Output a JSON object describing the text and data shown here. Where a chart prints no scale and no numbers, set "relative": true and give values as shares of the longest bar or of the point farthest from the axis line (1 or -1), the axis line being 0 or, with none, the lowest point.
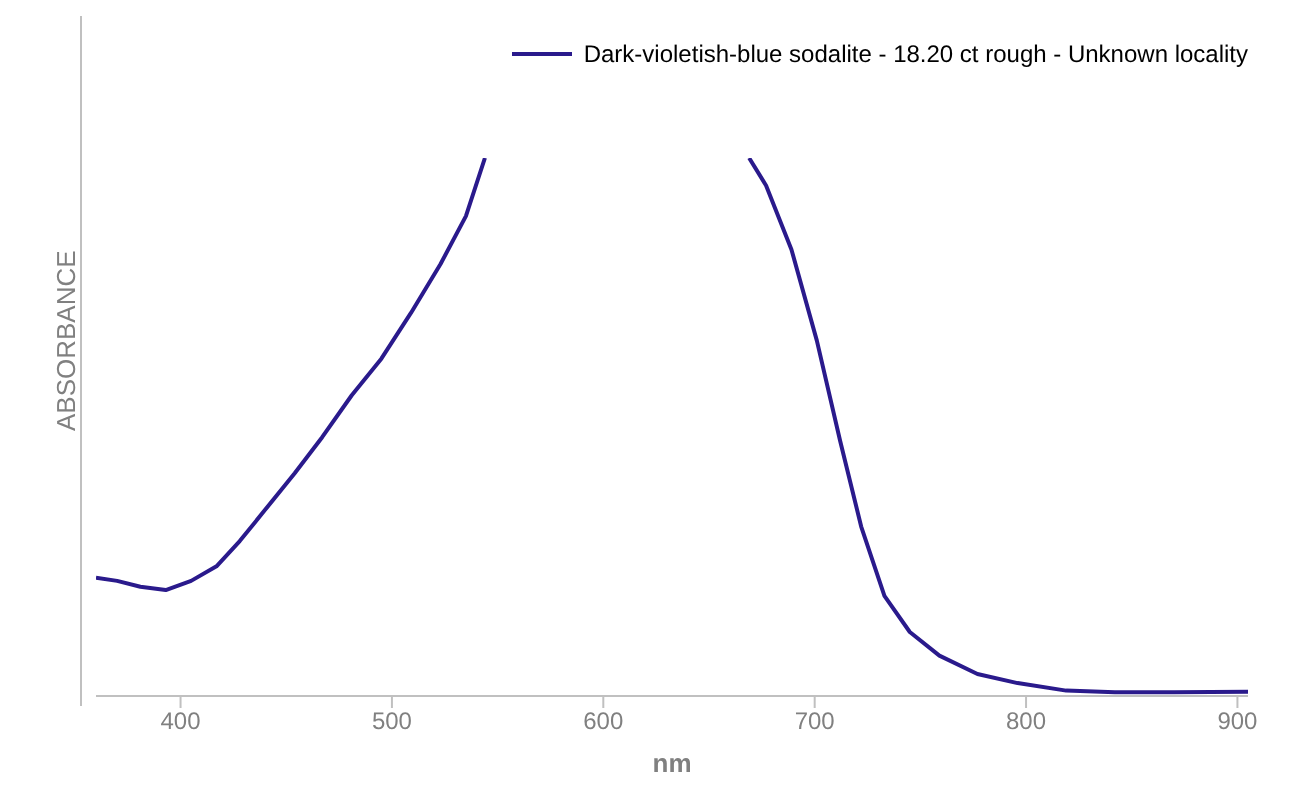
{
  "chart_data": {
    "type": "line",
    "xlabel": "nm",
    "ylabel": "ABSORBANCE",
    "relative": true,
    "xlim": [
      360,
      905
    ],
    "xticks": [
      400,
      500,
      600,
      700,
      800,
      900
    ],
    "legend": "top right",
    "grid": false,
    "marker": "none",
    "line_style": "solid",
    "series": [
      {
        "name": "Dark-violetish-blue sodalite - 18.20 ct rough - Unknown locality",
        "color": "#2a1a8c",
        "x": [
          360,
          370,
          381,
          393,
          405,
          417,
          428,
          440,
          454,
          467,
          481,
          495,
          509,
          523,
          535,
          544,
          600,
          669,
          677,
          689,
          701,
          712,
          722,
          733,
          745,
          759,
          777,
          796,
          819,
          842,
          870,
          905
        ],
        "values": [
          0.22,
          0.214,
          0.203,
          0.197,
          0.214,
          0.241,
          0.288,
          0.346,
          0.414,
          0.481,
          0.559,
          0.627,
          0.712,
          0.803,
          0.892,
          1,
          null,
          1,
          0.949,
          0.83,
          0.661,
          0.475,
          0.315,
          0.186,
          0.119,
          0.075,
          0.041,
          0.024,
          0.01,
          0.007,
          0.007,
          0.008
        ]
      }
    ]
  }
}
